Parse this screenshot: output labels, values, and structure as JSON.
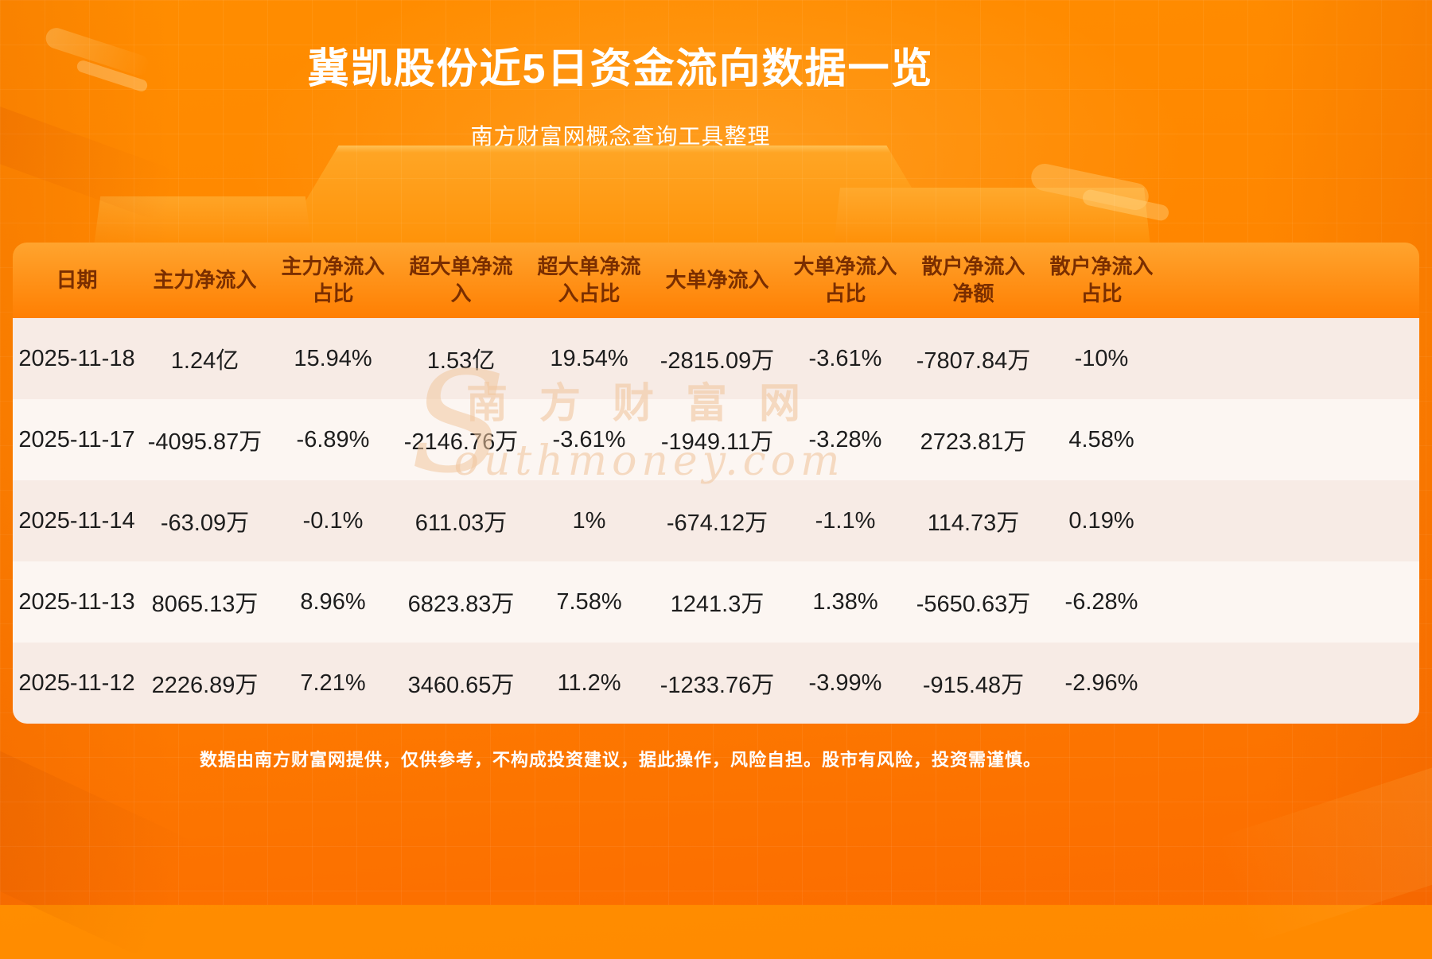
{
  "page": {
    "title": "冀凯股份近5日资金流向数据一览",
    "subtitle": "南方财富网概念查询工具整理",
    "disclaimer": "数据由南方财富网提供，仅供参考，不构成投资建议，据此操作，风险自担。股市有风险，投资需谨慎。",
    "watermark": {
      "cn": "南方财富网",
      "s": "S",
      "en": "outhmoney.com"
    }
  },
  "chart_data": {
    "type": "table",
    "title": "冀凯股份近5日资金流向数据一览",
    "columns": [
      "日期",
      "主力净流入",
      "主力净流入\n占比",
      "超大单净流\n入",
      "超大单净流\n入占比",
      "大单净流入",
      "大单净流入\n占比",
      "散户净流入\n净额",
      "散户净流入\n占比"
    ],
    "rows": [
      [
        "2025-11-18",
        "1.24亿",
        "15.94%",
        "1.53亿",
        "19.54%",
        "-2815.09万",
        "-3.61%",
        "-7807.84万",
        "-10%"
      ],
      [
        "2025-11-17",
        "-4095.87万",
        "-6.89%",
        "-2146.76万",
        "-3.61%",
        "-1949.11万",
        "-3.28%",
        "2723.81万",
        "4.58%"
      ],
      [
        "2025-11-14",
        "-63.09万",
        "-0.1%",
        "611.03万",
        "1%",
        "-674.12万",
        "-1.1%",
        "114.73万",
        "0.19%"
      ],
      [
        "2025-11-13",
        "8065.13万",
        "8.96%",
        "6823.83万",
        "7.58%",
        "1241.3万",
        "1.38%",
        "-5650.63万",
        "-6.28%"
      ],
      [
        "2025-11-12",
        "2226.89万",
        "7.21%",
        "3460.65万",
        "11.2%",
        "-1233.76万",
        "-3.99%",
        "-915.48万",
        "-2.96%"
      ]
    ]
  },
  "theme": {
    "bgTop": "#ff8d00",
    "bgBottom": "#fb6c00",
    "headerGradTop": "#ffa42e",
    "headerGradBottom": "#ff7f02",
    "headerText": "#7a2e00",
    "rowOdd": "#f7ebe5",
    "rowEven": "#fcf6f2",
    "cellText": "#1d1d1d",
    "titleText": "#ffffff"
  }
}
